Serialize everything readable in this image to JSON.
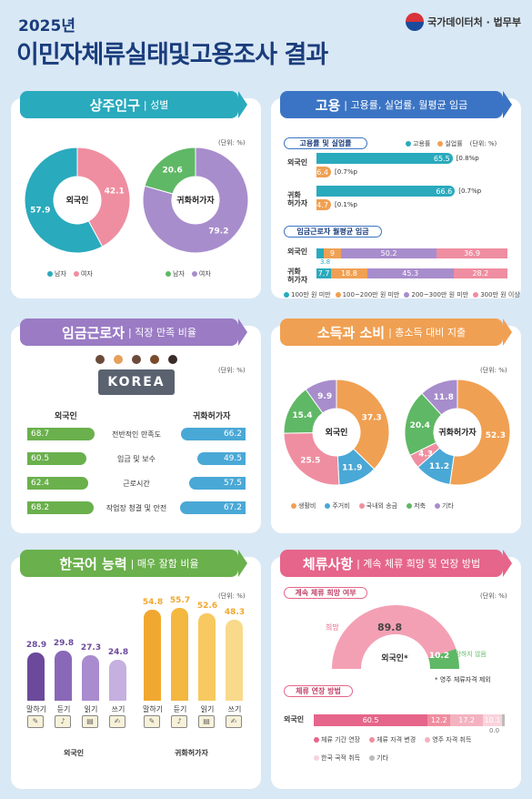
{
  "header": {
    "year": "2025년",
    "title": "이민자체류실태및고용조사 결과",
    "org": "국가데이터처 · 법무부"
  },
  "unit": "(단위: %)",
  "sections": {
    "population": {
      "title": "상주인구",
      "sub": "| 성별",
      "color": "#2aaabd"
    },
    "employment": {
      "title": "고용",
      "sub": "| 고용률, 실업률, 월평균 임금",
      "color": "#3b74c4"
    },
    "wage_worker": {
      "title": "임금근로자",
      "sub": "| 직장 만족 비율",
      "color": "#9a7bc4"
    },
    "income": {
      "title": "소득과 소비",
      "sub": "| 총소득 대비 지출",
      "color": "#f0a052"
    },
    "korean": {
      "title": "한국어 능력",
      "sub": "| 매우 잘함 비율",
      "color": "#6ab04c"
    },
    "stay": {
      "title": "체류사항",
      "sub": "| 계속 체류 희망 및 연장 방법",
      "color": "#e6658a"
    }
  },
  "population": {
    "legend": [
      "남자",
      "여자"
    ],
    "legend2": [
      "남자",
      "여자"
    ],
    "foreign": {
      "label": "외국인",
      "male": 57.9,
      "female": 42.1,
      "colors": [
        "#2aaabd",
        "#ef8ea0"
      ]
    },
    "naturalized": {
      "label": "귀화허가자",
      "male": 20.6,
      "female": 79.2,
      "colors": [
        "#5fb865",
        "#a88dcc"
      ]
    }
  },
  "employment": {
    "pill1": "고용률 및 실업률",
    "legend": [
      "고용률",
      "실업률"
    ],
    "rows": [
      {
        "label": "외국인",
        "emp": 65.5,
        "emp_note": "[0.8%p",
        "unemp": 6.4,
        "unemp_note": "[0.7%p"
      },
      {
        "label": "귀화\n허가자",
        "emp": 66.6,
        "emp_note": "[0.7%p",
        "unemp": 4.7,
        "unemp_note": "[0.1%p"
      }
    ],
    "pill2": "임금근로자 월평균 임금",
    "wage_rows": [
      {
        "label": "외국인",
        "values": [
          3.8,
          9.0,
          50.2,
          36.9
        ]
      },
      {
        "label": "귀화\n허가자",
        "values": [
          7.7,
          18.8,
          45.3,
          28.2
        ]
      }
    ],
    "wage_legend": [
      "100만 원 미만",
      "100~200만 원 미만",
      "200~300만 원 미만",
      "300만 원 이상"
    ],
    "wage_colors": [
      "#2aaabd",
      "#f0a052",
      "#a88dcc",
      "#ef8ea0"
    ]
  },
  "wage_worker": {
    "banner": "KOREA",
    "left_title": "외국인",
    "right_title": "귀화허가자",
    "items": [
      {
        "cat": "전반적인 만족도",
        "foreign": 68.7,
        "natural": 66.2
      },
      {
        "cat": "임금 및 보수",
        "foreign": 60.5,
        "natural": 49.5
      },
      {
        "cat": "근로시간",
        "foreign": 62.4,
        "natural": 57.5
      },
      {
        "cat": "작업장 청결 및 안전",
        "foreign": 68.2,
        "natural": 67.2
      }
    ]
  },
  "income": {
    "legend": [
      "생활비",
      "주거비",
      "국내외 송금",
      "저축",
      "기타"
    ],
    "colors": [
      "#f0a052",
      "#4aa8d6",
      "#ef8ea0",
      "#5fb865",
      "#a88dcc"
    ],
    "foreign": {
      "label": "외국인",
      "values": [
        37.3,
        11.9,
        25.5,
        15.4,
        9.9
      ]
    },
    "naturalized": {
      "label": "귀화허가자",
      "values": [
        52.3,
        11.2,
        4.3,
        20.4,
        11.8
      ]
    }
  },
  "korean": {
    "categories": [
      "말하기",
      "듣기",
      "읽기",
      "쓰기"
    ],
    "foreign": {
      "label": "외국인",
      "values": [
        28.9,
        29.8,
        27.3,
        24.8
      ],
      "colors": [
        "#6b4a9c",
        "#8a68b8",
        "#a98bcf",
        "#c5b0e0"
      ]
    },
    "naturalized": {
      "label": "귀화허가자",
      "values": [
        54.8,
        55.7,
        52.6,
        48.3
      ],
      "colors": [
        "#f0a830",
        "#f4b740",
        "#f7c960",
        "#f9d98a"
      ]
    }
  },
  "stay": {
    "pill1": "계속 체류 희망 여부",
    "hope_label": "희망",
    "hope": 89.8,
    "no_label": "희망하지 않음",
    "no": 10.2,
    "center": "외국인*",
    "footnote": "* 영주 체류자격 제외",
    "pill2": "체류 연장 방법",
    "row_label": "외국인",
    "ext_values": [
      60.5,
      12.2,
      17.2,
      10.1,
      0.0
    ],
    "ext_colors": [
      "#e6658a",
      "#ef8ea0",
      "#f4b2c0",
      "#f9d3dc",
      "#bbbbbb"
    ],
    "ext_legend": [
      "체류 기간 연장",
      "체류 자격 변경",
      "영주 자격 취득",
      "한국 국적 취득",
      "기타"
    ]
  }
}
